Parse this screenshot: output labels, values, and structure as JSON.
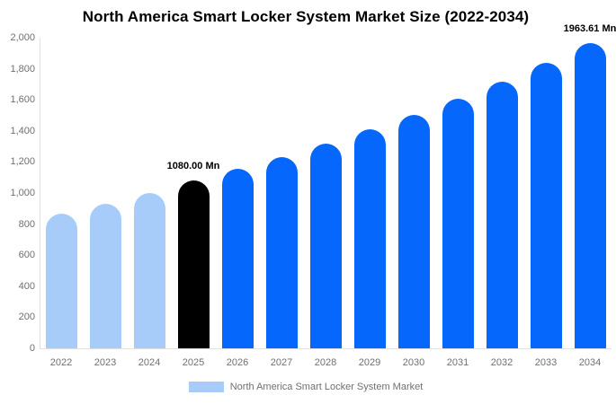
{
  "chart": {
    "title": "North America Smart Locker System Market Size (2022-2034)",
    "legend": {
      "label": "North America Smart Locker System Market",
      "swatch_color": "#A7CCFA"
    },
    "colors": {
      "past": "#A7CCFA",
      "highlight": "#000000",
      "forecast": "#0567FB",
      "axis_line": "#E1E1E1",
      "tick_text": "#707070"
    },
    "y_axis_ticks": [
      "0",
      "200",
      "400",
      "600",
      "800",
      "1,000",
      "1,200",
      "1,400",
      "1,600",
      "1,800",
      "2,000"
    ]
  },
  "chart_data": {
    "type": "bar",
    "title": "North America Smart Locker System Market Size (2022-2034)",
    "categories": [
      "2022",
      "2023",
      "2024",
      "2025",
      "2026",
      "2027",
      "2028",
      "2029",
      "2030",
      "2031",
      "2032",
      "2033",
      "2034"
    ],
    "series": [
      {
        "name": "North America Smart Locker System Market",
        "values": [
          865,
          930,
          1000,
          1080,
          1154,
          1233,
          1318,
          1409,
          1505,
          1609,
          1719,
          1837,
          1963.61
        ]
      }
    ],
    "unit": "Mn",
    "xlabel": "",
    "ylabel": "",
    "ylim": [
      0,
      2000
    ],
    "y_tick_step": 200,
    "grid": false,
    "legend_position": "bottom",
    "bar_color_roles": [
      "past",
      "past",
      "past",
      "highlight",
      "forecast",
      "forecast",
      "forecast",
      "forecast",
      "forecast",
      "forecast",
      "forecast",
      "forecast",
      "forecast"
    ],
    "annotations": [
      {
        "category": "2025",
        "text": "1080.00 Mn"
      },
      {
        "category": "2034",
        "text": "1963.61 Mn"
      }
    ]
  }
}
